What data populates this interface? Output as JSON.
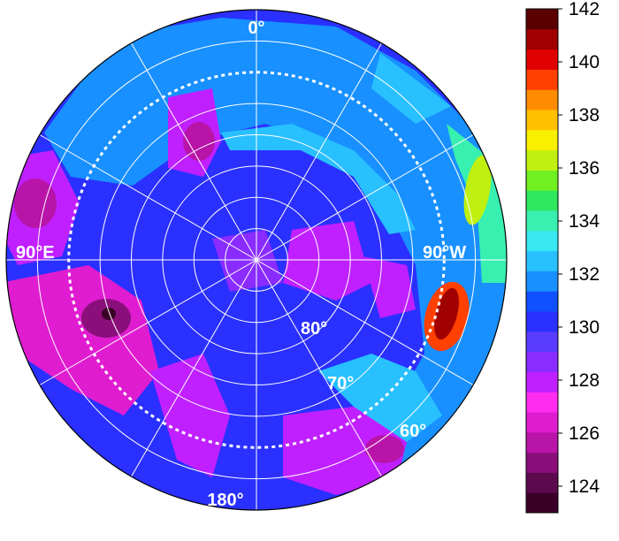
{
  "chart_data": {
    "type": "heatmap",
    "projection": "polar-stereographic",
    "title": "",
    "longitude_labels": {
      "top": "0°",
      "bottom": "180°",
      "left": "90°E",
      "right": "90°W"
    },
    "latitude_labels": [
      "80°",
      "70°",
      "60°"
    ],
    "latitude_rings": [
      80,
      70,
      60
    ],
    "dashed_ring_latitude": 60,
    "colorbar": {
      "min": 123,
      "max": 142,
      "ticks": [
        "124",
        "126",
        "128",
        "130",
        "132",
        "134",
        "136",
        "138",
        "140",
        "142"
      ],
      "colors": [
        "#3a0028",
        "#5c0a4e",
        "#8a0f7a",
        "#b814a8",
        "#e01cd0",
        "#ff2cf0",
        "#c020ff",
        "#8a2cff",
        "#5a3cff",
        "#2a30ff",
        "#1050ff",
        "#1890ff",
        "#28c0ff",
        "#38e8f0",
        "#38f0b0",
        "#30e860",
        "#70f020",
        "#c0f010",
        "#f8f000",
        "#ffc000",
        "#ff8c00",
        "#ff4000",
        "#e00000",
        "#a00000",
        "#5a0000"
      ]
    }
  }
}
